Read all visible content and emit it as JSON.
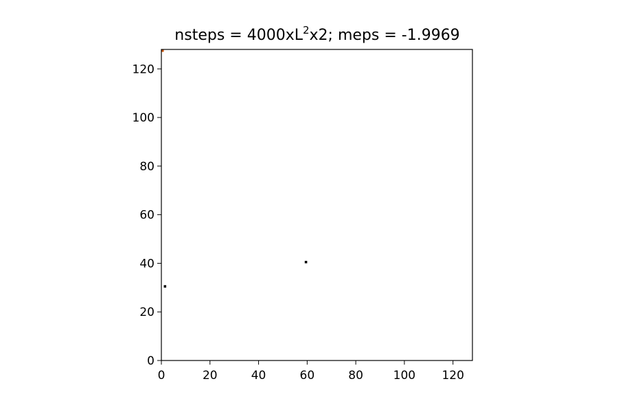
{
  "chart_data": {
    "type": "heatmap",
    "title_prefix": "nsteps = 4000xL",
    "title_sup": "2",
    "title_suffix": "x2; meps = -1.9969",
    "xlim": [
      0,
      128
    ],
    "ylim": [
      0,
      128
    ],
    "x_ticks": [
      0,
      20,
      40,
      60,
      80,
      100,
      120
    ],
    "y_ticks": [
      0,
      20,
      40,
      60,
      80,
      100,
      120
    ],
    "grid": false,
    "background_color": "#ffffff",
    "cells": [
      {
        "x": 0,
        "y": 127,
        "color": "#cc5500"
      },
      {
        "x": 1,
        "y": 30,
        "color": "#000000"
      },
      {
        "x": 59,
        "y": 40,
        "color": "#000000"
      }
    ]
  }
}
